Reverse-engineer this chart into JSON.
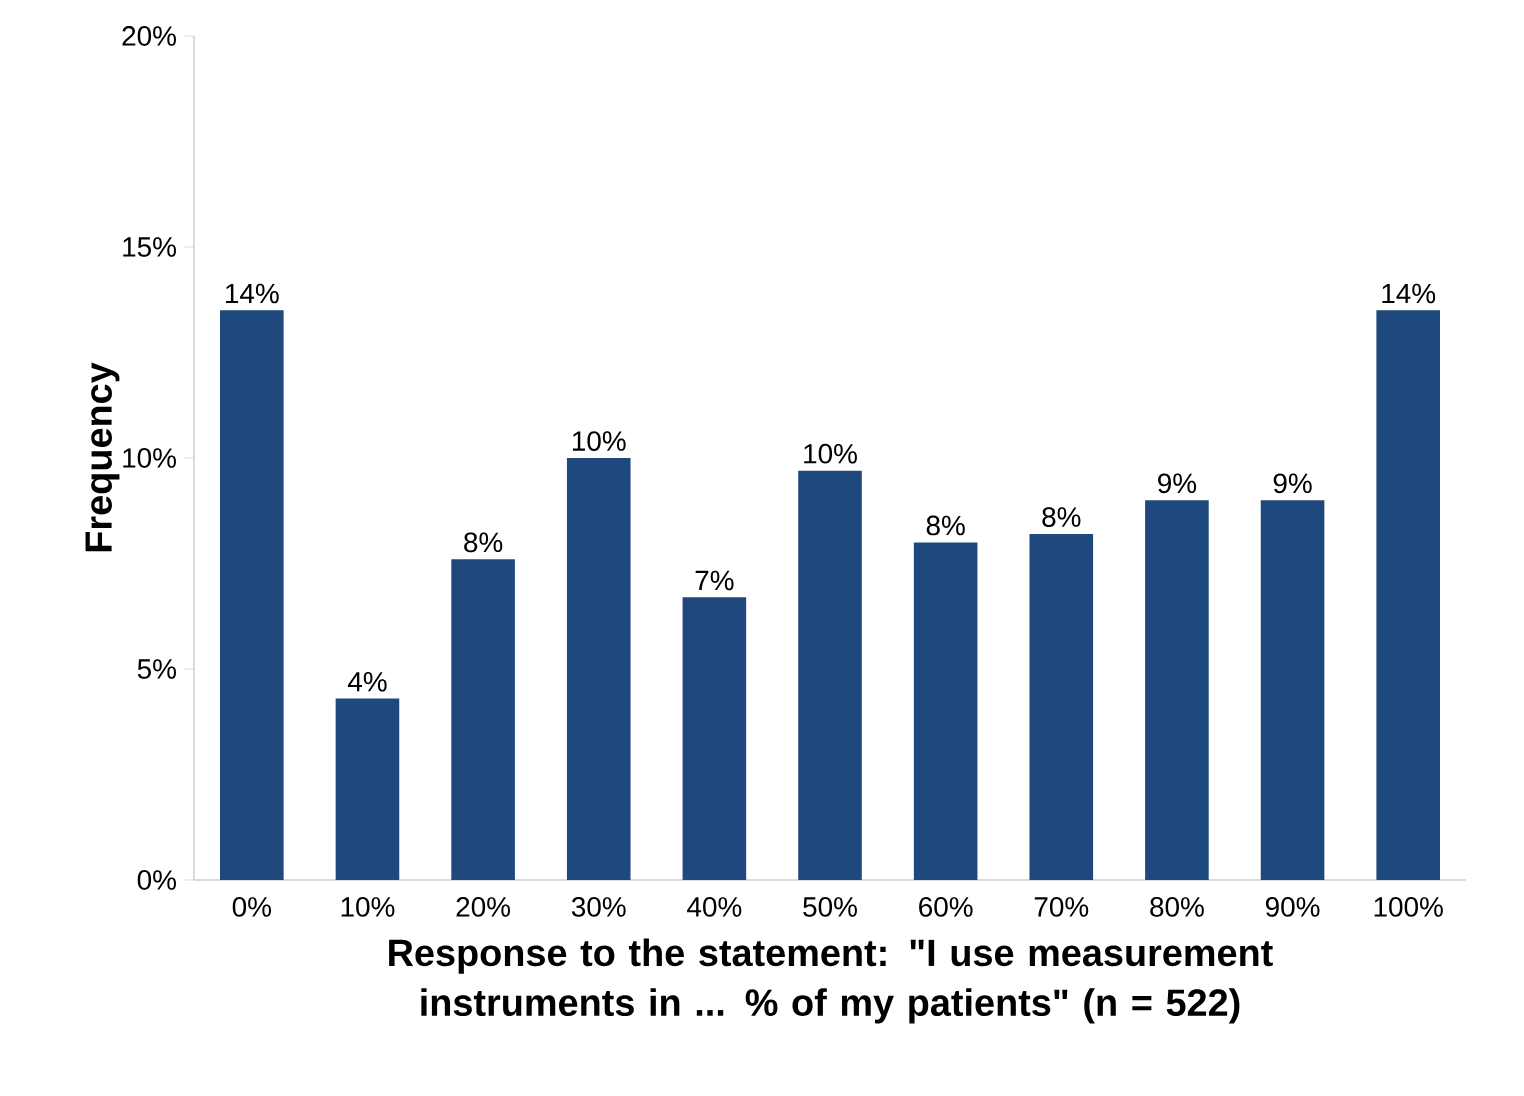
{
  "chart_data": {
    "type": "bar",
    "xlabel": "Response to the statement: \"I use measurement instruments in ... % of my patients\" (n = 522)",
    "ylabel": "Frequency",
    "categories": [
      "0%",
      "10%",
      "20%",
      "30%",
      "40%",
      "50%",
      "60%",
      "70%",
      "80%",
      "90%",
      "100%"
    ],
    "values": [
      13.5,
      4.3,
      7.6,
      10.0,
      6.7,
      9.7,
      8.0,
      8.2,
      9.0,
      9.0,
      13.5
    ],
    "value_labels": [
      "14%",
      "4%",
      "8%",
      "10%",
      "7%",
      "10%",
      "8%",
      "8%",
      "9%",
      "9%",
      "14%"
    ],
    "color": "#1f497d",
    "ylim": [
      0,
      20
    ],
    "yticks": [
      {
        "value": 0,
        "label": "0%"
      },
      {
        "value": 5,
        "label": "5%"
      },
      {
        "value": 10,
        "label": "10%"
      },
      {
        "value": 15,
        "label": "15%"
      },
      {
        "value": 20,
        "label": "20%"
      }
    ]
  }
}
